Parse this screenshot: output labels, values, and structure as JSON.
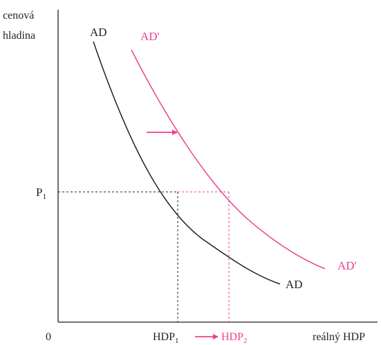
{
  "axes": {
    "y_label_line1": "cenová",
    "y_label_line2": "hladina",
    "x_label": "reálný HDP",
    "origin_label": "0"
  },
  "curves": {
    "ad_label_top": "AD",
    "ad_label_bottom": "AD",
    "ad_prime_label_top": "AD'",
    "ad_prime_label_bottom": "AD'"
  },
  "markers": {
    "price_base": "P",
    "price_sub": "1",
    "output1_base": "HDP",
    "output1_sub": "1",
    "output2_base": "HDP",
    "output2_sub": "2"
  },
  "colors": {
    "ink": "#231f20",
    "accent": "#ee3f8e"
  },
  "icons": {
    "shift_arrow": "right-arrow-icon",
    "output_arrow": "right-arrow-icon"
  }
}
